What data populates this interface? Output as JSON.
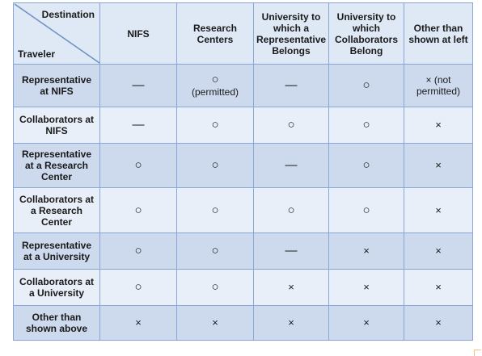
{
  "table": {
    "corner": {
      "top": "Destination",
      "bottom": "Traveler"
    },
    "columns": [
      "NIFS",
      "Research Centers",
      "University to which a Representative Belongs",
      "University to which Collaborators Belong",
      "Other than shown at left"
    ],
    "rows": [
      {
        "label": "Representative at NIFS",
        "cells": [
          {
            "mark": "—"
          },
          {
            "mark": "○",
            "note": "(permitted)"
          },
          {
            "mark": "—"
          },
          {
            "mark": "○"
          },
          {
            "mark": "× (not",
            "note": "permitted)"
          }
        ]
      },
      {
        "label": "Collaborators at NIFS",
        "cells": [
          {
            "mark": "—"
          },
          {
            "mark": "○"
          },
          {
            "mark": "○"
          },
          {
            "mark": "○"
          },
          {
            "mark": "×"
          }
        ]
      },
      {
        "label": "Representative at a Research Center",
        "cells": [
          {
            "mark": "○"
          },
          {
            "mark": "○"
          },
          {
            "mark": "—"
          },
          {
            "mark": "○"
          },
          {
            "mark": "×"
          }
        ]
      },
      {
        "label": "Collaborators at a Research Center",
        "cells": [
          {
            "mark": "○"
          },
          {
            "mark": "○"
          },
          {
            "mark": "○"
          },
          {
            "mark": "○"
          },
          {
            "mark": "×"
          }
        ]
      },
      {
        "label": "Representative at a University",
        "cells": [
          {
            "mark": "○"
          },
          {
            "mark": "○"
          },
          {
            "mark": "—"
          },
          {
            "mark": "×"
          },
          {
            "mark": "×"
          }
        ]
      },
      {
        "label": "Collaborators at a University",
        "cells": [
          {
            "mark": "○"
          },
          {
            "mark": "○"
          },
          {
            "mark": "×"
          },
          {
            "mark": "×"
          },
          {
            "mark": "×"
          }
        ]
      },
      {
        "label": "Other than shown above",
        "cells": [
          {
            "mark": "×"
          },
          {
            "mark": "×"
          },
          {
            "mark": "×"
          },
          {
            "mark": "×"
          },
          {
            "mark": "×"
          }
        ]
      }
    ]
  },
  "colors": {
    "header_bg": "#dfe8f5",
    "shaded_row_bg": "#cdd9ec",
    "plain_row_bg": "#e9eff8",
    "border": "#8aa6d6"
  }
}
